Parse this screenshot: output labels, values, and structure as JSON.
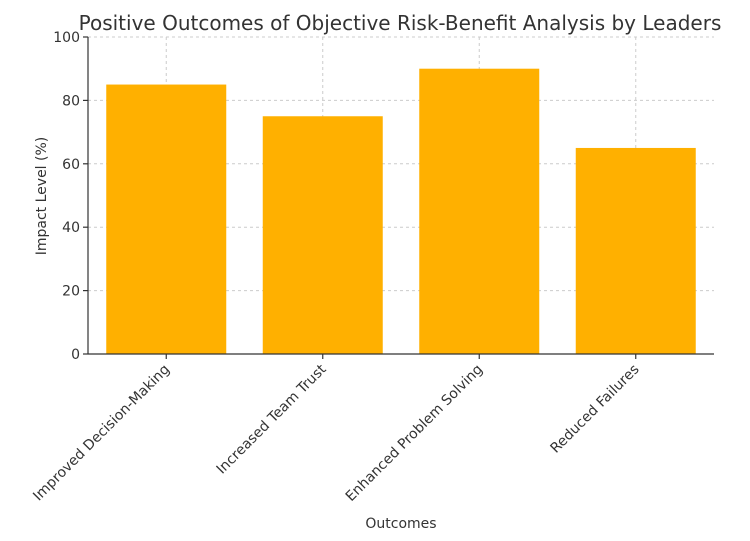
{
  "chart_data": {
    "type": "bar",
    "title": "Positive Outcomes of Objective Risk-Benefit Analysis by Leaders",
    "xlabel": "Outcomes",
    "ylabel": "Impact Level (%)",
    "categories": [
      "Improved Decision-Making",
      "Increased Team Trust",
      "Enhanced Problem Solving",
      "Reduced Failures"
    ],
    "values": [
      85,
      75,
      90,
      65
    ],
    "ylim": [
      0,
      100
    ],
    "yticks": [
      0,
      20,
      40,
      60,
      80,
      100
    ],
    "grid": true,
    "bar_color": "#ffb000"
  }
}
